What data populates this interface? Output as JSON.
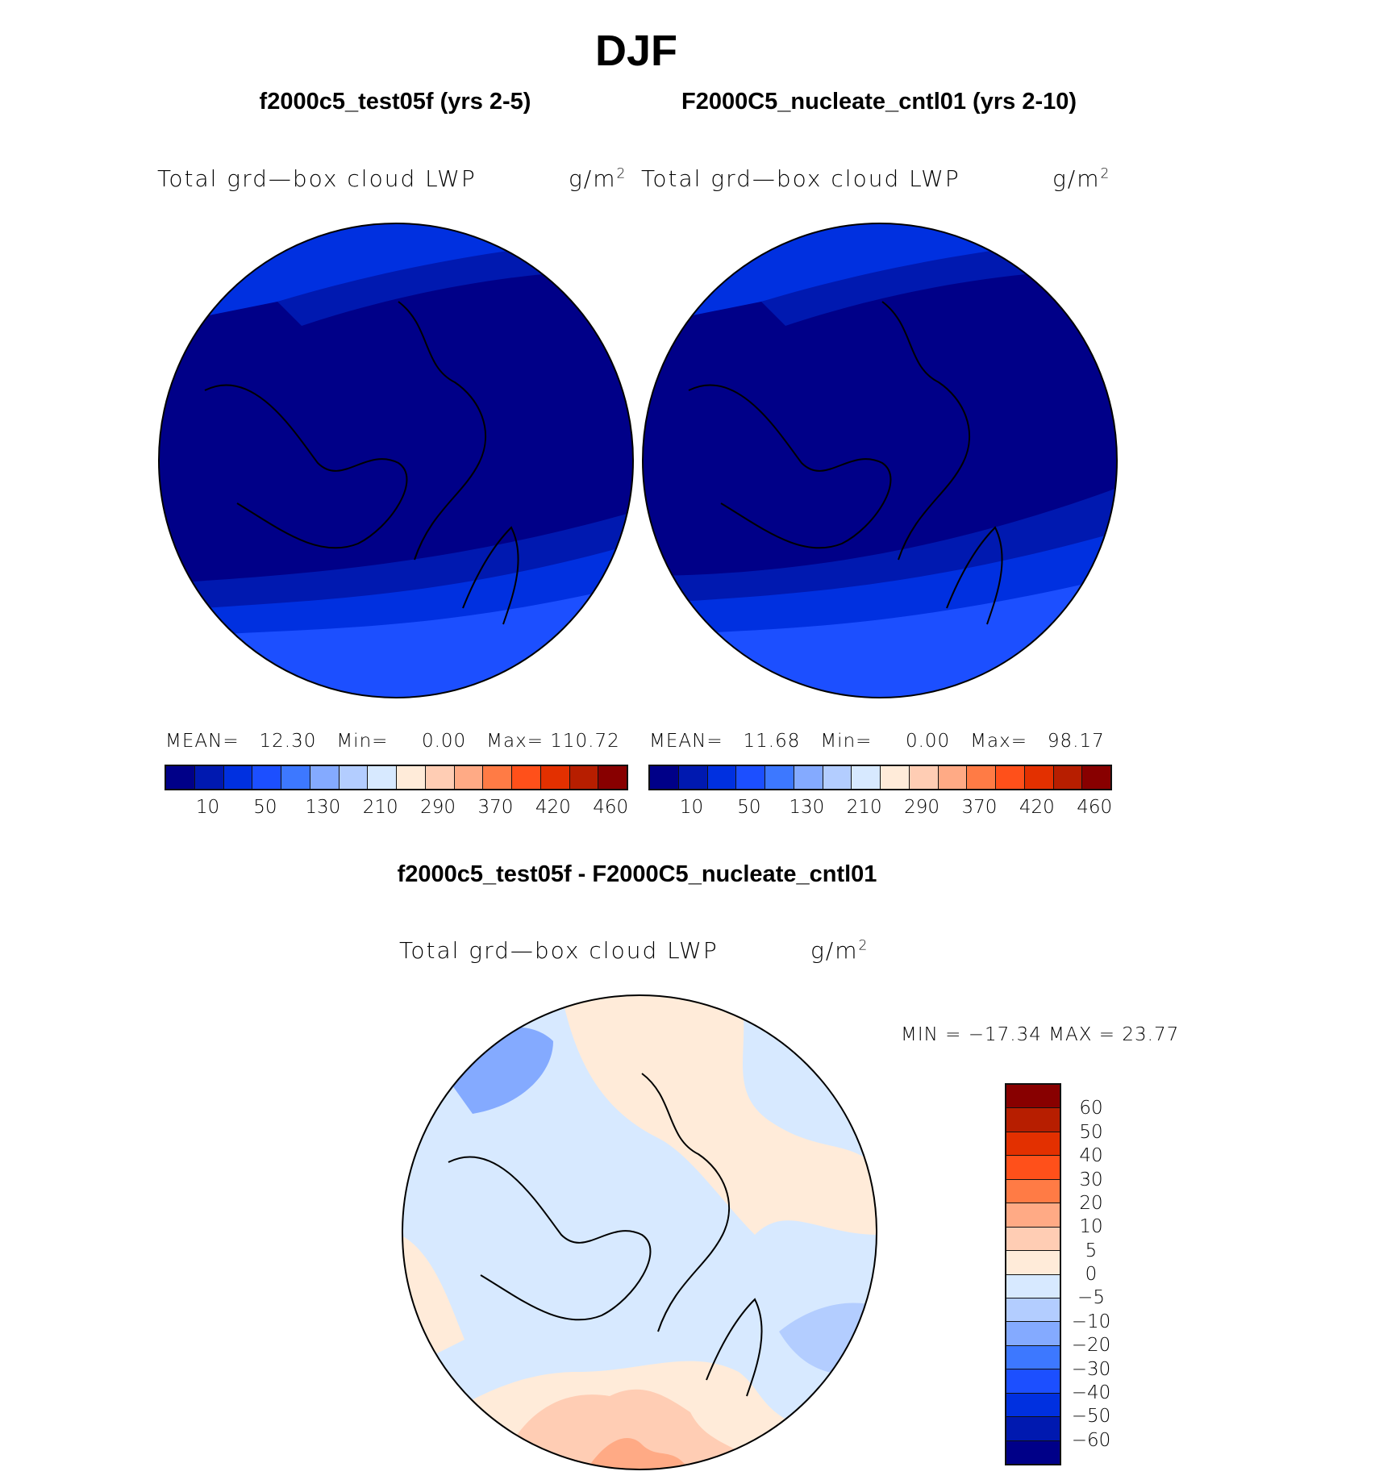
{
  "title": "DJF",
  "panels": [
    {
      "subtitle": "f2000c5_test05f (yrs 2-5)",
      "field": "Total grd—box cloud LWP",
      "units": "g/m",
      "units_sup": "2",
      "stats": {
        "mean_label": "MEAN=",
        "mean": "12.30",
        "min_label": "Min=",
        "min": "0.00",
        "max_label": "Max=",
        "max": "110.72"
      }
    },
    {
      "subtitle": "F2000C5_nucleate_cntl01 (yrs 2-10)",
      "field": "Total grd—box cloud LWP",
      "units": "g/m",
      "units_sup": "2",
      "stats": {
        "mean_label": "MEAN=",
        "mean": "11.68",
        "min_label": "Min=",
        "min": "0.00",
        "max_label": "Max=",
        "max": "98.17"
      }
    },
    {
      "subtitle": "f2000c5_test05f - F2000C5_nucleate_cntl01",
      "field": "Total grd—box cloud LWP",
      "units": "g/m",
      "units_sup": "2",
      "stats": {
        "text": "MIN = −17.34 MAX =   23.77"
      }
    }
  ],
  "chart_data": {
    "type": "heatmap",
    "projection": "north polar stereographic",
    "title": "DJF",
    "maps": [
      {
        "name": "f2000c5_test05f (yrs 2-5)",
        "mean": 12.3,
        "min": 0.0,
        "max": 110.72
      },
      {
        "name": "F2000C5_nucleate_cntl01 (yrs 2-10)",
        "mean": 11.68,
        "min": 0.0,
        "max": 98.17
      },
      {
        "name": "f2000c5_test05f - F2000C5_nucleate_cntl01",
        "min": -17.34,
        "max": 23.77
      }
    ],
    "colorbar_main": {
      "tick_labels": [
        "10",
        "50",
        "130",
        "210",
        "290",
        "370",
        "420",
        "460"
      ]
    },
    "colorbar_diff": {
      "tick_labels": [
        "60",
        "50",
        "40",
        "30",
        "20",
        "10",
        "5",
        "0",
        "−5",
        "−10",
        "−20",
        "−30",
        "−40",
        "−50",
        "−60"
      ]
    },
    "colors": [
      "#000088",
      "#0019b0",
      "#0030e0",
      "#1c4fff",
      "#3d78ff",
      "#84aaff",
      "#b3cdff",
      "#d7e9ff",
      "#ffebd9",
      "#ffcdb4",
      "#ffaa85",
      "#ff7b45",
      "#ff501a",
      "#e33000",
      "#b71e00",
      "#880000"
    ]
  }
}
